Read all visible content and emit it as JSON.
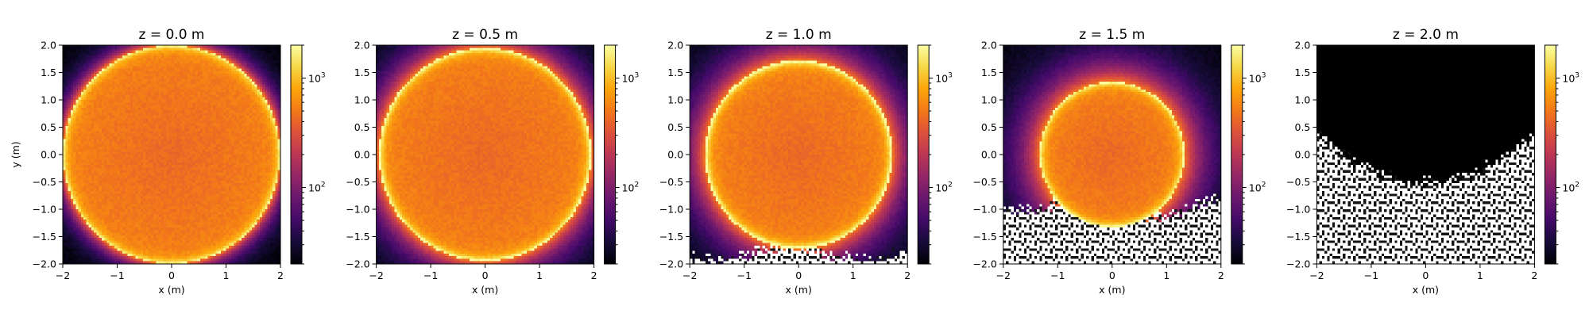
{
  "figure": {
    "colormap": "inferno",
    "background": "#ffffff"
  },
  "chart_data": [
    {
      "type": "heatmap",
      "title": "z = 0.0 m",
      "xlabel": "x (m)",
      "ylabel": "y (m)",
      "xlim": [
        -2,
        2
      ],
      "ylim": [
        -2,
        2
      ],
      "x_ticks": [
        "−2",
        "−1",
        "0",
        "1",
        "2"
      ],
      "y_ticks": [
        "2.0",
        "1.5",
        "1.0",
        "0.5",
        "0.0",
        "−0.5",
        "−1.0",
        "−1.5",
        "−2.0"
      ],
      "colorbar": {
        "scale": "log",
        "range": [
          20,
          2000
        ],
        "ticks": [
          "10",
          "10"
        ],
        "tick_exponents": [
          "3",
          "2"
        ]
      },
      "disk_radius": 2.0,
      "disk_center": [
        0,
        0
      ],
      "ring_intensity": 0.65,
      "halo_width": 0.2,
      "masked_below_y": null
    },
    {
      "type": "heatmap",
      "title": "z = 0.5 m",
      "xlabel": "x (m)",
      "ylabel": "",
      "xlim": [
        -2,
        2
      ],
      "ylim": [
        -2,
        2
      ],
      "x_ticks": [
        "−2",
        "−1",
        "0",
        "1",
        "2"
      ],
      "y_ticks": [
        "2.0",
        "1.5",
        "1.0",
        "0.5",
        "0.0",
        "−0.5",
        "−1.0",
        "−1.5",
        "−2.0"
      ],
      "colorbar": {
        "scale": "log",
        "range": [
          20,
          2000
        ],
        "ticks": [
          "10",
          "10"
        ],
        "tick_exponents": [
          "3",
          "2"
        ]
      },
      "disk_radius": 1.95,
      "disk_center": [
        0,
        0
      ],
      "ring_intensity": 0.75,
      "halo_width": 0.35,
      "masked_below_y": null
    },
    {
      "type": "heatmap",
      "title": "z = 1.0 m",
      "xlabel": "x (m)",
      "ylabel": "",
      "xlim": [
        -2,
        2
      ],
      "ylim": [
        -2,
        2
      ],
      "x_ticks": [
        "−2",
        "−1",
        "0",
        "1",
        "2"
      ],
      "y_ticks": [
        "2.0",
        "1.5",
        "1.0",
        "0.5",
        "0.0",
        "−0.5",
        "−1.0",
        "−1.5",
        "−2.0"
      ],
      "colorbar": {
        "scale": "log",
        "range": [
          20,
          2000
        ],
        "ticks": [
          "10",
          "10"
        ],
        "tick_exponents": [
          "3",
          "2"
        ]
      },
      "disk_radius": 1.72,
      "disk_center": [
        0,
        0
      ],
      "ring_intensity": 0.8,
      "halo_width": 0.4,
      "masked_below_y": -1.8
    },
    {
      "type": "heatmap",
      "title": "z = 1.5 m",
      "xlabel": "x (m)",
      "ylabel": "",
      "xlim": [
        -2,
        2
      ],
      "ylim": [
        -2,
        2
      ],
      "x_ticks": [
        "−2",
        "−1",
        "0",
        "1",
        "2"
      ],
      "y_ticks": [
        "2.0",
        "1.5",
        "1.0",
        "0.5",
        "0.0",
        "−0.5",
        "−1.0",
        "−1.5",
        "−2.0"
      ],
      "colorbar": {
        "scale": "log",
        "range": [
          20,
          2000
        ],
        "ticks": [
          "10",
          "10"
        ],
        "tick_exponents": [
          "3",
          "2"
        ]
      },
      "disk_radius": 1.33,
      "disk_center": [
        0,
        0
      ],
      "ring_intensity": 0.7,
      "halo_width": 0.45,
      "masked_below_y": -1.0
    },
    {
      "type": "heatmap",
      "title": "z = 2.0 m",
      "xlabel": "x (m)",
      "ylabel": "",
      "xlim": [
        -2,
        2
      ],
      "ylim": [
        -2,
        2
      ],
      "x_ticks": [
        "−2",
        "−1",
        "0",
        "1",
        "2"
      ],
      "y_ticks": [
        "2.0",
        "1.5",
        "1.0",
        "0.5",
        "0.0",
        "−0.5",
        "−1.0",
        "−1.5",
        "−2.0"
      ],
      "colorbar": {
        "scale": "log",
        "range": [
          20,
          2000
        ],
        "ticks": [
          "10",
          "10"
        ],
        "tick_exponents": [
          "3",
          "2"
        ]
      },
      "disk_radius": 0.0,
      "disk_center": [
        0,
        0
      ],
      "ring_intensity": 0.0,
      "halo_width": 0.0,
      "masked_below_y": 0.0
    }
  ]
}
